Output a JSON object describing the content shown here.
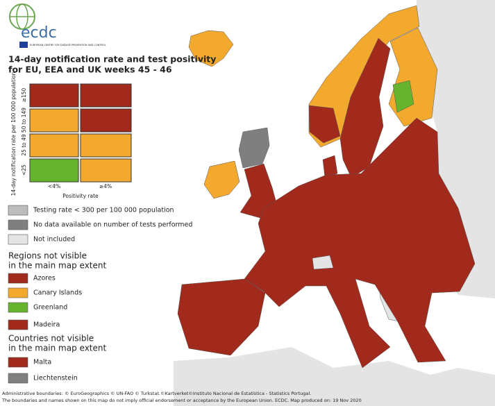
{
  "logo": {
    "name": "ecdc",
    "subtitle": "EUROPEAN CENTRE FOR DISEASE PREVENTION AND CONTROL"
  },
  "title": [
    "14-day notification rate and test positivity",
    "for EU, EEA and UK weeks 45 - 46"
  ],
  "matrix": {
    "y_label": "14-day notification rate per 100 000 population",
    "rows": [
      "≥150",
      "50 to 149",
      "25 to 49",
      "<25"
    ],
    "columns": [
      "<4%",
      "≥4%"
    ],
    "x_label": "Positivity rate"
  },
  "legend": [
    "Testing rate < 300 per 100 000 population",
    "No data available on number of tests performed",
    "Not included"
  ],
  "regions": {
    "heading": [
      "Regions not visible",
      "in the main map extent"
    ],
    "items": [
      "Azores",
      "Canary Islands",
      "Greenland",
      "Madeira"
    ]
  },
  "countries": {
    "heading": [
      "Countries not visible",
      "in the main map extent"
    ],
    "items": [
      "Malta",
      "Liechtenstein"
    ]
  },
  "footer": [
    "Administrative boundaries: © EuroGeographics © UN-FAO © Turkstat.©Kartverket©Instituto Nacional de Estatística - Statistics Portugal.",
    "The boundaries and names shown on this map do not imply official endorsement or acceptance by the European Union. ECDC. Map produced on: 19 Nov 2020"
  ]
}
